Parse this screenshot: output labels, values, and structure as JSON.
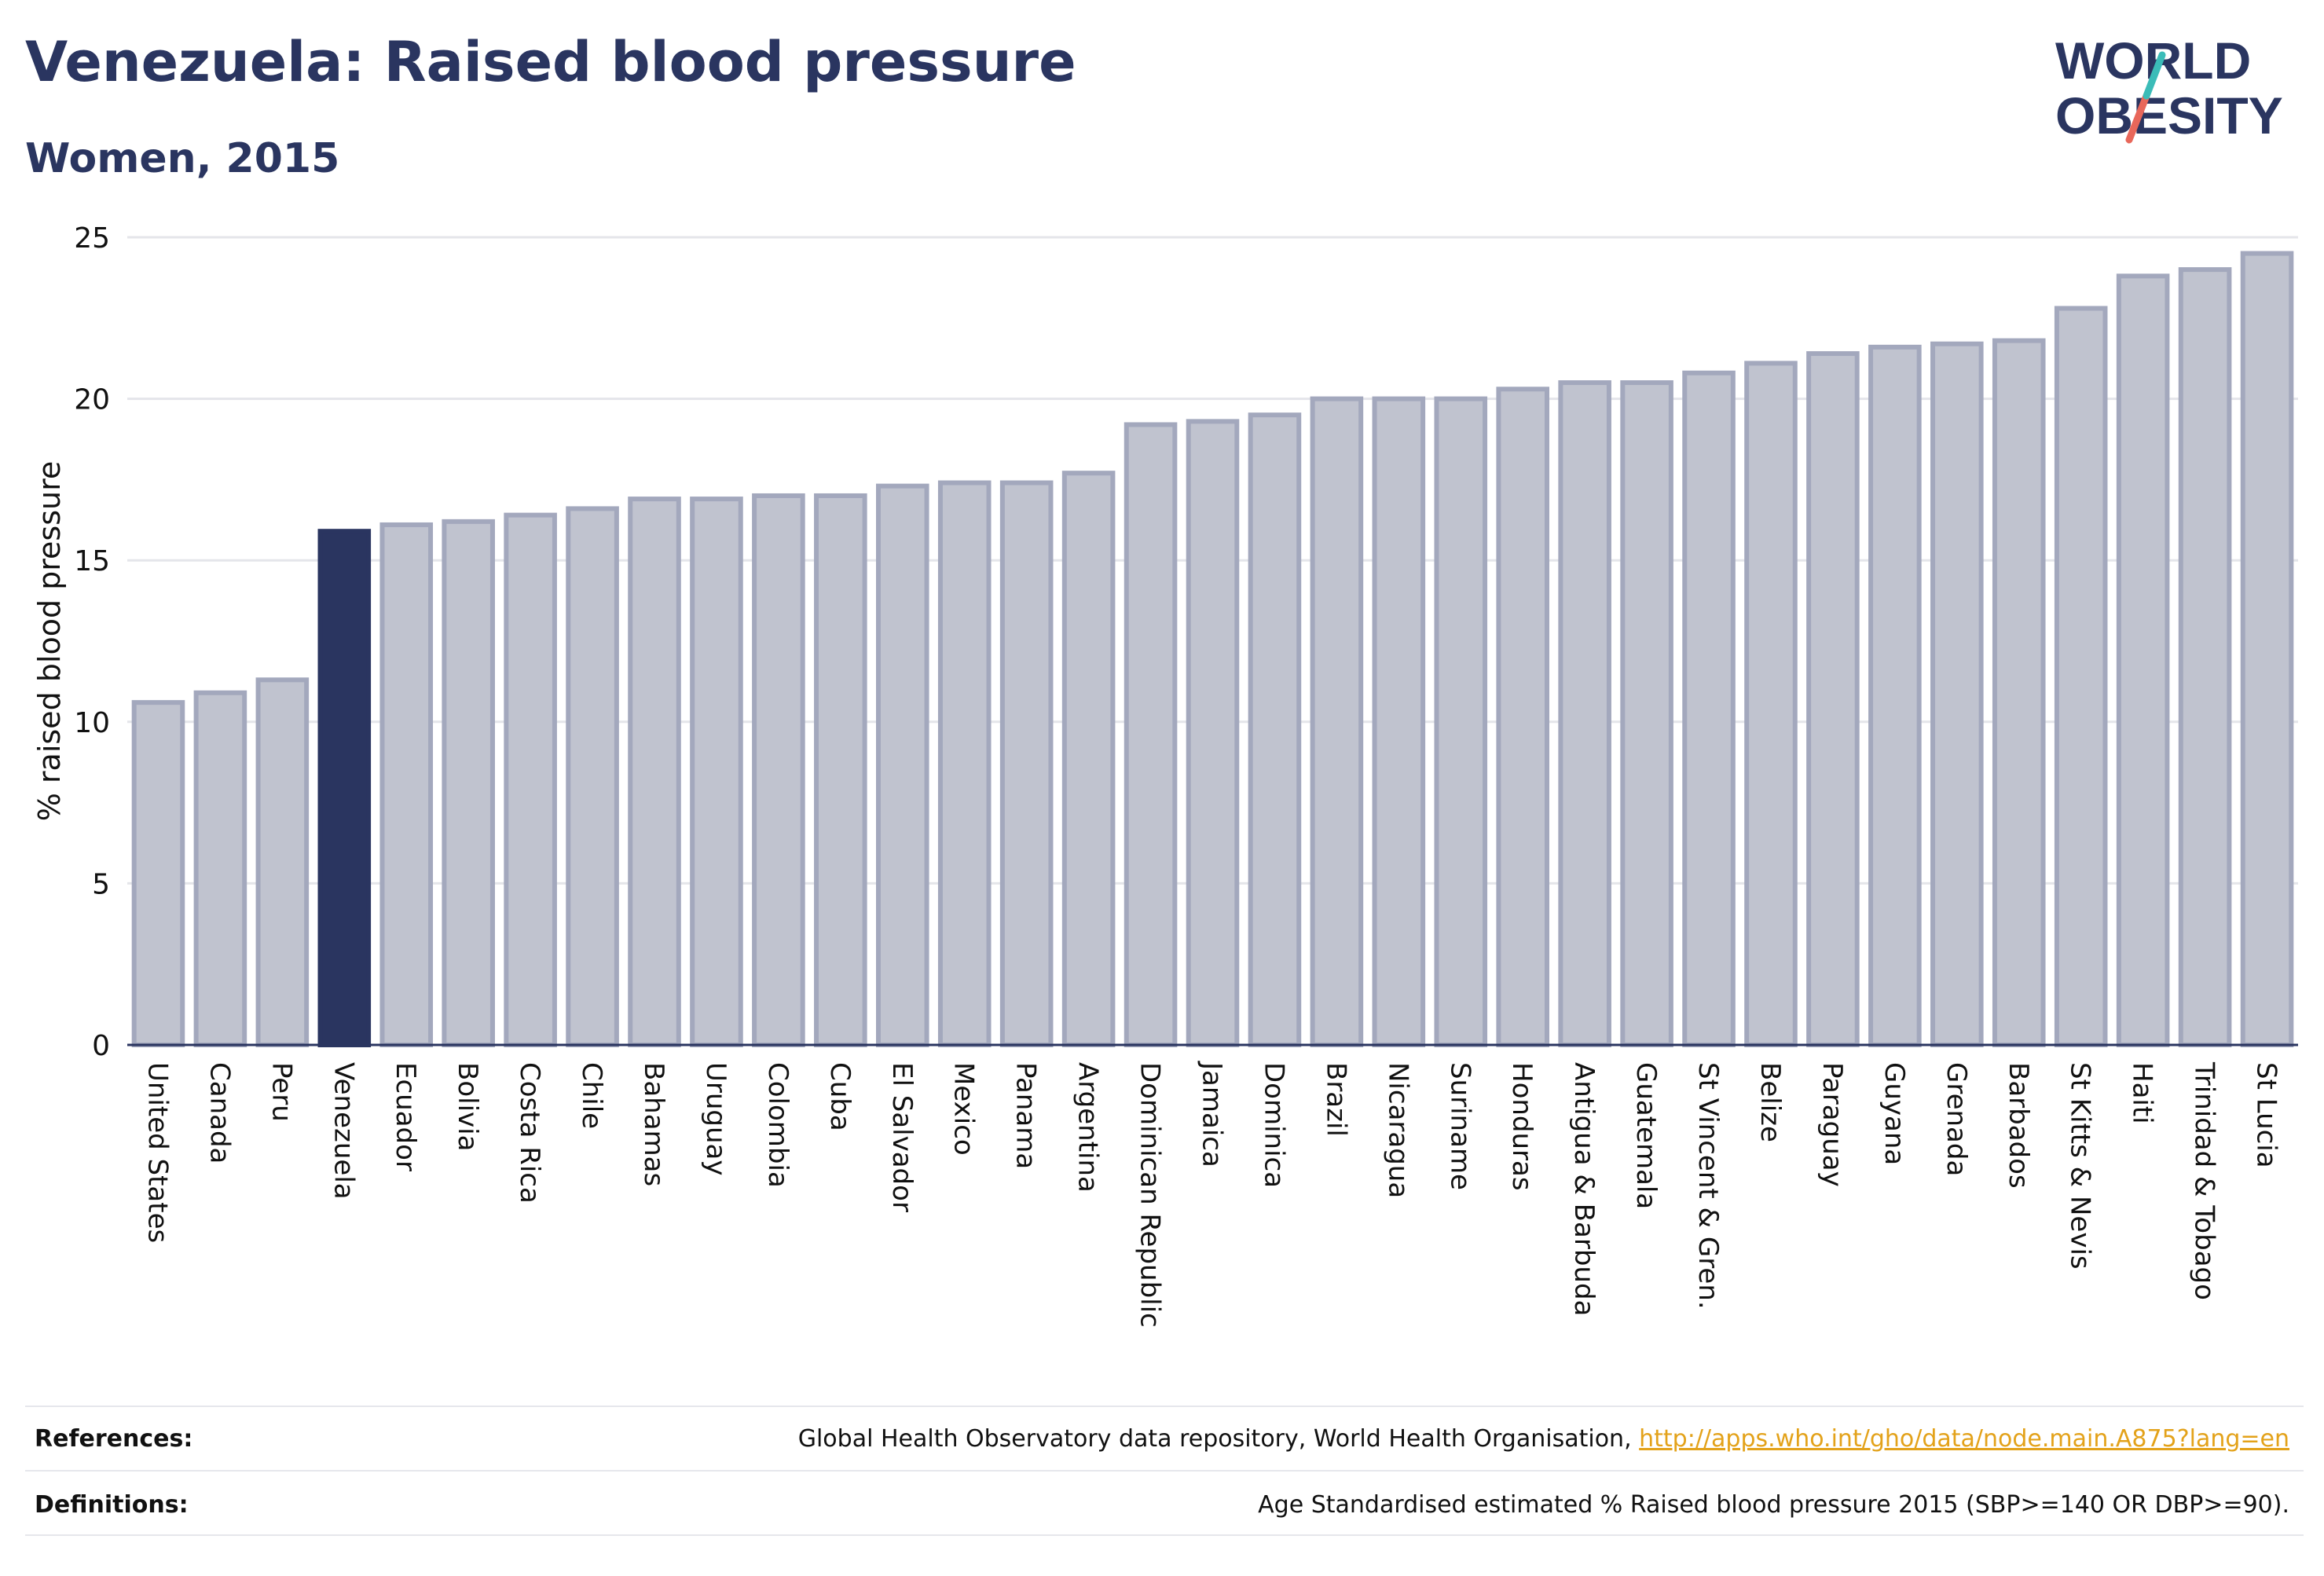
{
  "title": "Venezuela: Raised blood pressure",
  "subtitle": "Women, 2015",
  "logo": {
    "line1": "WORLD",
    "line2": "OBESITY"
  },
  "colors": {
    "bar": "#c0c3cf",
    "bar_border": "#a3a8bd",
    "highlight": "#2a3560",
    "grid": "#e4e5ea",
    "axis": "#2a3560",
    "title": "#2a3560",
    "link": "#e3a21a",
    "logo_teal": "#3bbcb8",
    "logo_coral": "#e8675a"
  },
  "chart_data": {
    "type": "bar",
    "ylabel": "% raised blood pressure",
    "ylim": [
      0,
      25
    ],
    "yticks": [
      0,
      5,
      10,
      15,
      20,
      25
    ],
    "grid": true,
    "highlight": "Venezuela",
    "categories": [
      "United States",
      "Canada",
      "Peru",
      "Venezuela",
      "Ecuador",
      "Bolivia",
      "Costa Rica",
      "Chile",
      "Bahamas",
      "Uruguay",
      "Colombia",
      "Cuba",
      "El Salvador",
      "Mexico",
      "Panama",
      "Argentina",
      "Dominican Republic",
      "Jamaica",
      "Dominica",
      "Brazil",
      "Nicaragua",
      "Suriname",
      "Honduras",
      "Antigua & Barbuda",
      "Guatemala",
      "St Vincent & Gren.",
      "Belize",
      "Paraguay",
      "Guyana",
      "Grenada",
      "Barbados",
      "St Kitts & Nevis",
      "Haiti",
      "Trinidad & Tobago",
      "St Lucia"
    ],
    "values": [
      10.6,
      10.9,
      11.3,
      15.9,
      16.1,
      16.2,
      16.4,
      16.6,
      16.9,
      16.9,
      17.0,
      17.0,
      17.3,
      17.4,
      17.4,
      17.7,
      19.2,
      19.3,
      19.5,
      20.0,
      20.0,
      20.0,
      20.3,
      20.5,
      20.5,
      20.8,
      21.1,
      21.4,
      21.6,
      21.7,
      21.8,
      22.8,
      23.8,
      24.0,
      24.5
    ]
  },
  "footer": {
    "references_label": "References:",
    "references_text": "Global Health Observatory data repository, World Health Organisation, ",
    "references_link": "http://apps.who.int/gho/data/node.main.A875?lang=en",
    "definitions_label": "Definitions:",
    "definitions_text": "Age Standardised estimated % Raised blood pressure 2015 (SBP>=140 OR DBP>=90)."
  }
}
